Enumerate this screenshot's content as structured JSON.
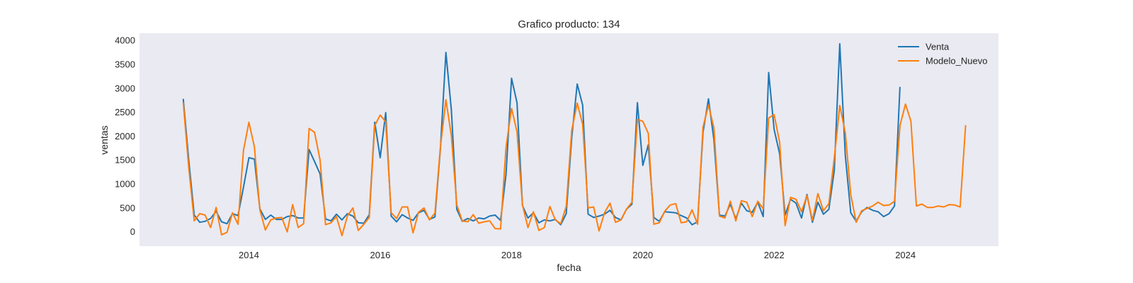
{
  "chart_data": {
    "type": "line",
    "title": "Grafico producto: 134",
    "xlabel": "fecha",
    "ylabel": "ventas",
    "x_axis_kind": "date",
    "xlim": [
      "2012-05-01",
      "2025-06-01"
    ],
    "ylim": [
      -300,
      4150
    ],
    "xticks": [
      "2014",
      "2016",
      "2018",
      "2020",
      "2022",
      "2024"
    ],
    "yticks": [
      "0",
      "500",
      "1000",
      "1500",
      "2000",
      "2500",
      "3000",
      "3500",
      "4000"
    ],
    "grid": false,
    "background": "#eaeaf2",
    "legend_position": "top-right",
    "series": [
      {
        "name": "Venta",
        "color": "#1f77b4",
        "start": "2013-01",
        "values": [
          2780,
          1500,
          350,
          200,
          220,
          280,
          430,
          210,
          170,
          380,
          340,
          930,
          1550,
          1520,
          480,
          260,
          350,
          260,
          260,
          320,
          340,
          290,
          290,
          1720,
          1470,
          1210,
          270,
          230,
          370,
          250,
          380,
          330,
          190,
          180,
          360,
          2290,
          1550,
          2490,
          330,
          210,
          360,
          290,
          240,
          400,
          450,
          260,
          310,
          1730,
          3750,
          2550,
          470,
          220,
          280,
          230,
          290,
          270,
          330,
          350,
          240,
          1200,
          3210,
          2700,
          550,
          290,
          400,
          190,
          250,
          230,
          260,
          150,
          380,
          1970,
          3090,
          2650,
          370,
          300,
          330,
          370,
          450,
          300,
          250,
          470,
          580,
          2700,
          1390,
          1820,
          300,
          220,
          420,
          410,
          400,
          340,
          290,
          150,
          210,
          2080,
          2780,
          1920,
          350,
          330,
          580,
          270,
          600,
          440,
          410,
          620,
          320,
          3330,
          2140,
          1630,
          350,
          680,
          600,
          290,
          780,
          200,
          620,
          370,
          470,
          1290,
          3930,
          1600,
          400,
          220,
          420,
          510,
          450,
          420,
          320,
          380,
          540,
          3030
        ]
      },
      {
        "name": "Modelo_Nuevo",
        "color": "#ff7f0e",
        "start": "2013-01",
        "values": [
          2700,
          1350,
          230,
          380,
          350,
          90,
          510,
          -60,
          -10,
          400,
          160,
          1700,
          2290,
          1780,
          460,
          40,
          250,
          290,
          300,
          0,
          570,
          90,
          170,
          2160,
          2080,
          1500,
          150,
          190,
          320,
          -80,
          330,
          500,
          30,
          160,
          300,
          2220,
          2440,
          2300,
          400,
          280,
          520,
          520,
          -20,
          410,
          500,
          250,
          390,
          1770,
          2760,
          2010,
          560,
          230,
          210,
          360,
          180,
          210,
          230,
          70,
          60,
          1770,
          2580,
          2090,
          560,
          90,
          420,
          30,
          90,
          530,
          250,
          170,
          530,
          2120,
          2690,
          2250,
          500,
          520,
          20,
          400,
          600,
          200,
          250,
          470,
          620,
          2350,
          2310,
          2060,
          160,
          190,
          430,
          560,
          590,
          190,
          210,
          460,
          160,
          2190,
          2650,
          2170,
          330,
          290,
          640,
          230,
          650,
          620,
          320,
          640,
          480,
          2380,
          2450,
          1870,
          130,
          720,
          680,
          420,
          760,
          240,
          800,
          440,
          590,
          1550,
          2640,
          2070,
          780,
          200,
          440,
          490,
          540,
          620,
          550,
          560,
          640,
          2220,
          2670,
          2310,
          540,
          580,
          510,
          510,
          540,
          520,
          570,
          560,
          520,
          2230
        ]
      }
    ]
  }
}
